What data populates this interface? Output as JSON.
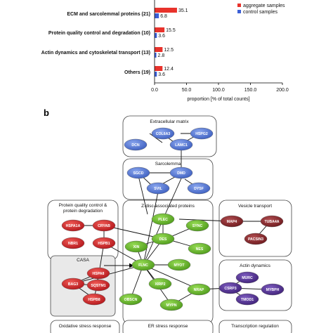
{
  "chart_data": {
    "type": "bar",
    "orientation": "horizontal",
    "categories": [
      "ECM and sarcolemmal proteins (21)",
      "Protein quality control and degradation (10)",
      "Actin dynamics and cytoskeletal transport (13)",
      "Others (19)"
    ],
    "series": [
      {
        "name": "aggregate samples",
        "color": "#e8322b",
        "values": [
          35.1,
          15.5,
          12.5,
          12.4
        ]
      },
      {
        "name": "control samples",
        "color": "#3b5fd6",
        "values": [
          6.8,
          3.6,
          2.8,
          3.6
        ]
      }
    ],
    "value_labels": [
      [
        "35.1",
        "15.5",
        "12.5",
        "12.4"
      ],
      [
        "6.8",
        "3.6",
        "2.8",
        "3.6"
      ]
    ],
    "xlim": [
      0,
      200
    ],
    "xticks": [
      "0.0",
      "50.0",
      "100.0",
      "150.0",
      "200.0"
    ],
    "xlabel": "proportion [% of total counts]",
    "legend_position": "top-right"
  },
  "panel_b": {
    "label": "b",
    "colors": {
      "ecm": "#5a7fd6",
      "green": "#6cbe2e",
      "red": "#d9262b",
      "maroon": "#8e2a2d",
      "purple": "#5a3596"
    },
    "groups": {
      "extracellular_matrix": "Extracellular matrix",
      "sarcolemma": "Sarcolemma",
      "pqc": "Protein quality control &\nprotein degradation",
      "zdisc": "Z-disc-associated proteins",
      "vesicle": "Vesicle transport",
      "casa": "CASA",
      "actin": "Actin dynamics",
      "oxidative": "Oxidative stress response",
      "er_stress": "ER stress response",
      "transcription": "Transcription regulation"
    },
    "nodes": {
      "col6a3": "COL6A3",
      "hspg2": "HSPG2",
      "dcn": "DCN",
      "lamc1": "LAMC1",
      "sgcd": "SGCD",
      "dmd": "DMD",
      "svil": "SVIL",
      "dysf": "DYSF",
      "hspa1a": "HSPA1A",
      "cryab": "CRYAB",
      "nbr1": "NBR1",
      "hspb1": "HSPB1",
      "plec": "PLEC",
      "sync": "SYNC",
      "xin": "XIN",
      "des": "DES",
      "nes": "NES",
      "flnc": "FLNC",
      "myot": "MYOT",
      "xirp2": "XIRP2",
      "obscn": "OBSCN",
      "mypn": "MYPN",
      "nrap": "NRAP",
      "map4": "MAP4",
      "tuba4a": "TUBA4A",
      "pacsin3": "PACSIN3",
      "hspa8": "HSPA8",
      "bag3": "BAG3",
      "sqstm1": "SQSTM1",
      "hspb8": "HSPB8",
      "murc": "MURC",
      "csrp3": "CSRP3",
      "mybph": "MYBPH",
      "tmod1": "TMOD1"
    }
  }
}
